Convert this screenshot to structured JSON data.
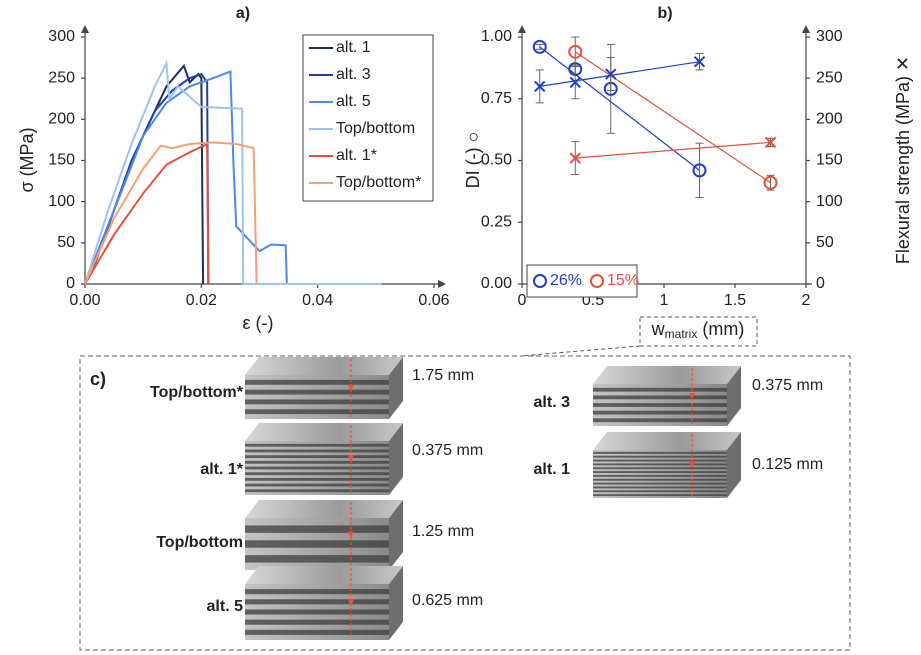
{
  "chart_data": [
    {
      "type": "line",
      "title": "a)",
      "xlabel": "ε (-)",
      "ylabel": "σ (MPa)",
      "xlim": [
        0,
        0.06
      ],
      "xticks": [
        {
          "value": 0,
          "label": "0.00"
        },
        {
          "value": 0.02,
          "label": "0.02"
        },
        {
          "value": 0.04,
          "label": "0.04"
        },
        {
          "value": 0.06,
          "label": "0.06"
        }
      ],
      "ylim": [
        0,
        300
      ],
      "yticks": [
        0,
        50,
        100,
        150,
        200,
        250,
        300
      ],
      "legend": "upper right",
      "series": [
        {
          "name": "alt. 1",
          "color": "#1f2d5a",
          "x": [
            0,
            0.002,
            0.005,
            0.01,
            0.014,
            0.017,
            0.018,
            0.0195,
            0.02,
            0.0203
          ],
          "values": [
            0,
            30,
            90,
            180,
            240,
            265,
            245,
            255,
            250,
            0
          ]
        },
        {
          "name": "alt. 3",
          "color": "#1f3fa8",
          "x": [
            0,
            0.003,
            0.008,
            0.012,
            0.015,
            0.018,
            0.02,
            0.021,
            0.0212
          ],
          "values": [
            0,
            50,
            150,
            210,
            235,
            250,
            255,
            245,
            0
          ]
        },
        {
          "name": "alt. 5",
          "color": "#4a8ae8",
          "x": [
            0,
            0.005,
            0.01,
            0.014,
            0.018,
            0.022,
            0.025,
            0.0255,
            0.026,
            0.03,
            0.032,
            0.0345,
            0.0347
          ],
          "values": [
            0,
            90,
            180,
            220,
            240,
            250,
            258,
            150,
            70,
            40,
            48,
            47,
            0
          ]
        },
        {
          "name": "Top/bottom",
          "color": "#9dc3f0",
          "x": [
            0,
            0.004,
            0.008,
            0.012,
            0.014,
            0.0145,
            0.016,
            0.02,
            0.027,
            0.0272,
            0.051
          ],
          "values": [
            0,
            90,
            170,
            240,
            268,
            225,
            240,
            215,
            213,
            0,
            0
          ]
        },
        {
          "name": "alt. 1*",
          "color": "#e8503a",
          "x": [
            0,
            0.005,
            0.01,
            0.014,
            0.018,
            0.021,
            0.0212
          ],
          "values": [
            0,
            60,
            110,
            145,
            160,
            170,
            0
          ]
        },
        {
          "name": "Top/bottom*",
          "color": "#f5a070",
          "x": [
            0,
            0.005,
            0.01,
            0.013,
            0.015,
            0.018,
            0.022,
            0.026,
            0.029,
            0.0295
          ],
          "values": [
            0,
            80,
            140,
            168,
            165,
            170,
            172,
            170,
            165,
            0
          ]
        }
      ]
    },
    {
      "type": "scatter",
      "title": "b)",
      "xlabel": {
        "main": "w",
        "sub": "matrix",
        "unit": " (mm)"
      },
      "ylabel": "DI (-) ○",
      "y2label": "Flexural strength (MPa) ✕",
      "xlim": [
        0,
        2
      ],
      "xticks": [
        0,
        0.5,
        1,
        1.5,
        2
      ],
      "ylim": [
        0,
        1
      ],
      "yticks": [
        {
          "value": 0,
          "label": "0.00"
        },
        {
          "value": 0.25,
          "label": "0.25"
        },
        {
          "value": 0.5,
          "label": "0.50"
        },
        {
          "value": 0.75,
          "label": "0.75"
        },
        {
          "value": 1,
          "label": "1.00"
        }
      ],
      "y2lim": [
        0,
        300
      ],
      "y2ticks": [
        0,
        50,
        100,
        150,
        200,
        250,
        300
      ],
      "legend": "lower left",
      "trendline": true,
      "series": [
        {
          "name": "26%",
          "color": "#1f3fc8",
          "marker": "circle",
          "x": [
            0.125,
            0.375,
            0.625,
            1.25
          ],
          "values": [
            0.96,
            0.87,
            0.79,
            0.46
          ],
          "errors": [
            0.01,
            0.02,
            0.18,
            0.11
          ]
        },
        {
          "name": "15%",
          "color": "#e8503a",
          "marker": "circle",
          "x": [
            0.375,
            1.75
          ],
          "values": [
            0.94,
            0.41
          ],
          "errors": [
            0.06,
            0.03
          ]
        },
        {
          "color": "#1f3fc8",
          "marker": "x",
          "axis": "y2",
          "x": [
            0.125,
            0.375,
            0.625,
            1.25
          ],
          "values": [
            240,
            245,
            255,
            270
          ],
          "errors": [
            20,
            20,
            20,
            10
          ]
        },
        {
          "color": "#e8503a",
          "marker": "x",
          "axis": "y2",
          "x": [
            0.375,
            1.75
          ],
          "values": [
            153,
            172
          ],
          "errors": [
            20,
            5
          ]
        }
      ]
    }
  ],
  "panel_c": {
    "label": "c)",
    "left": [
      {
        "name": "Top/bottom*",
        "thickness": "1.75 mm"
      },
      {
        "name": "alt. 1*",
        "thickness": "0.375 mm"
      },
      {
        "name": "Top/bottom",
        "thickness": "1.25 mm"
      },
      {
        "name": "alt. 5",
        "thickness": "0.625 mm"
      }
    ],
    "right": [
      {
        "name": "alt. 3",
        "thickness": "0.375 mm"
      },
      {
        "name": "alt. 1",
        "thickness": "0.125 mm"
      }
    ]
  }
}
